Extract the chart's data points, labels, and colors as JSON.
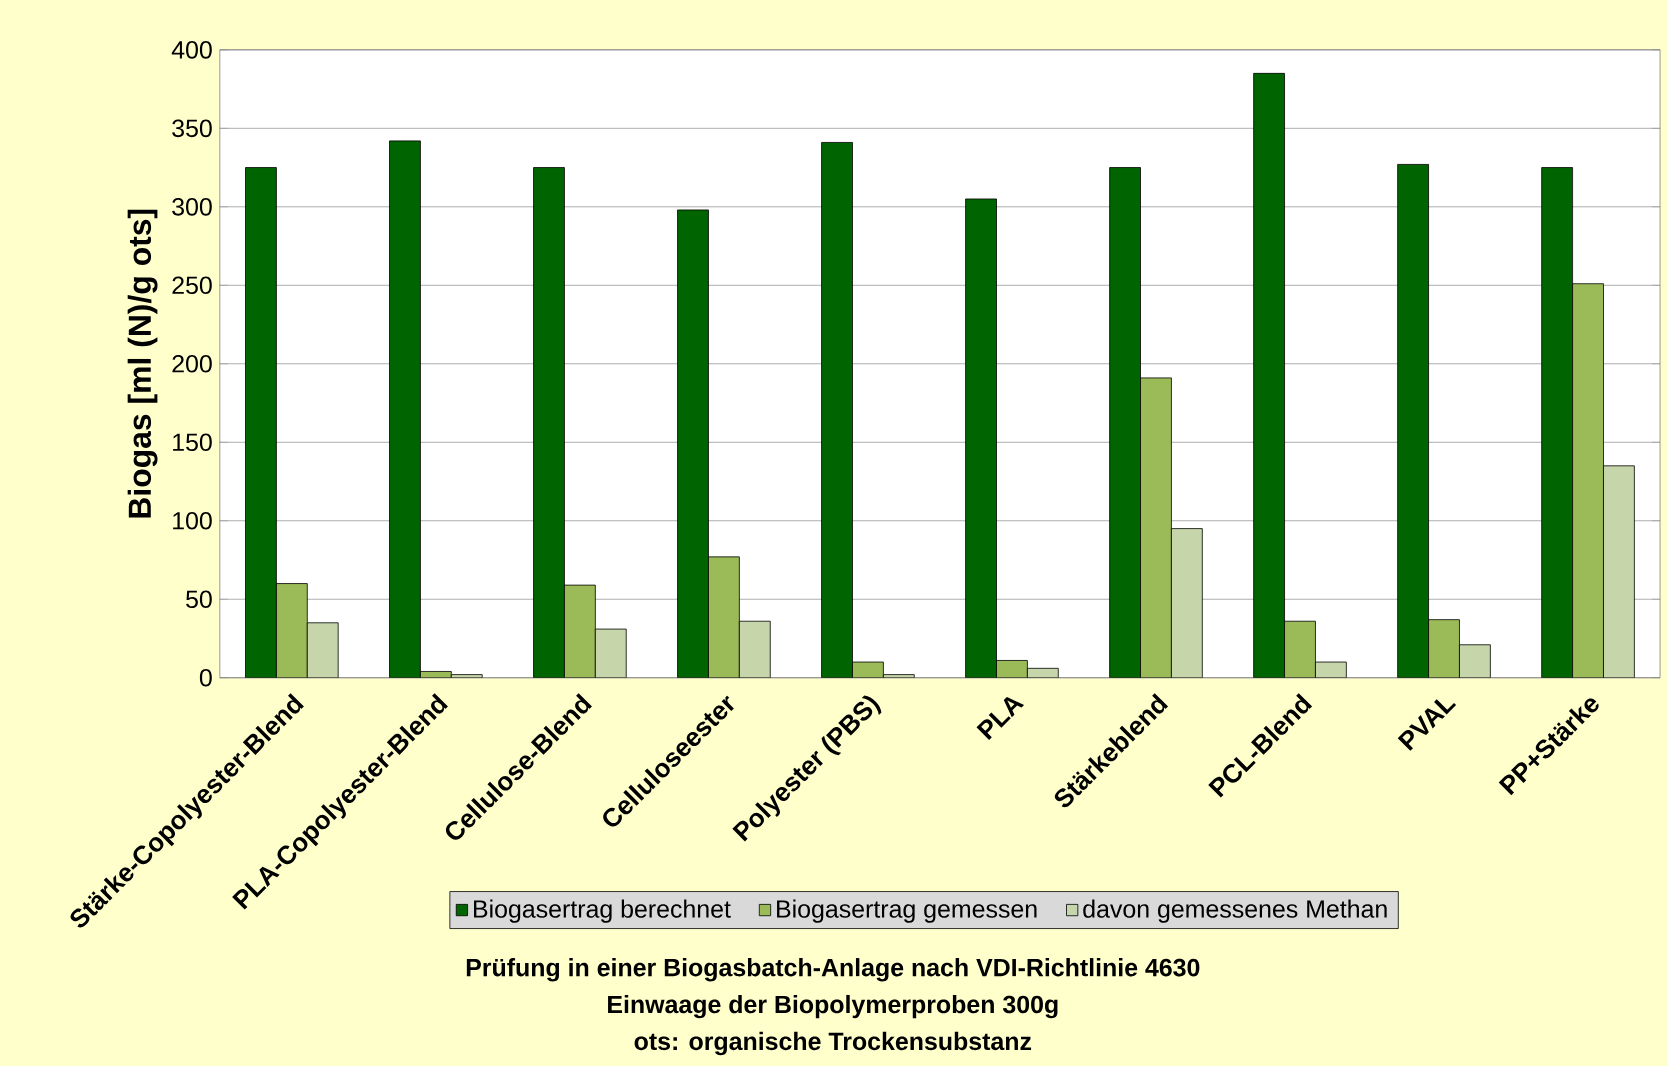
{
  "chart_data": {
    "type": "bar",
    "ylabel": "Biogas [ml (N)/g ots]",
    "categories": [
      "Stärke-Copolyester-Blend",
      "PLA-Copolyester-Blend",
      "Cellulose-Blend",
      "Celluloseester",
      "Polyester (PBS)",
      "PLA",
      "Stärkeblend",
      "PCL-Blend",
      "PVAL",
      "PP+Stärke"
    ],
    "series": [
      {
        "name": "Biogasertrag berechnet",
        "color": "#006400",
        "values": [
          325,
          342,
          325,
          298,
          341,
          305,
          325,
          385,
          327,
          325
        ]
      },
      {
        "name": "Biogasertrag gemessen",
        "color": "#9bbb59",
        "values": [
          60,
          4,
          59,
          77,
          10,
          11,
          191,
          36,
          37,
          251
        ]
      },
      {
        "name": "davon gemessenes Methan",
        "color": "#c6d6aa",
        "values": [
          35,
          2,
          31,
          36,
          2,
          6,
          95,
          10,
          21,
          135
        ]
      }
    ],
    "ylim": [
      0,
      400
    ],
    "yticks": [
      0,
      50,
      100,
      150,
      200,
      250,
      300,
      350,
      400
    ],
    "grid": "y",
    "legend": "bottom",
    "annotations": [
      "Prüfung in einer Biogasbatch-Anlage nach VDI-Richtlinie 4630",
      "Einwaage der Biopolymerproben  300g",
      "ots: organische Trockensubstanz"
    ]
  }
}
